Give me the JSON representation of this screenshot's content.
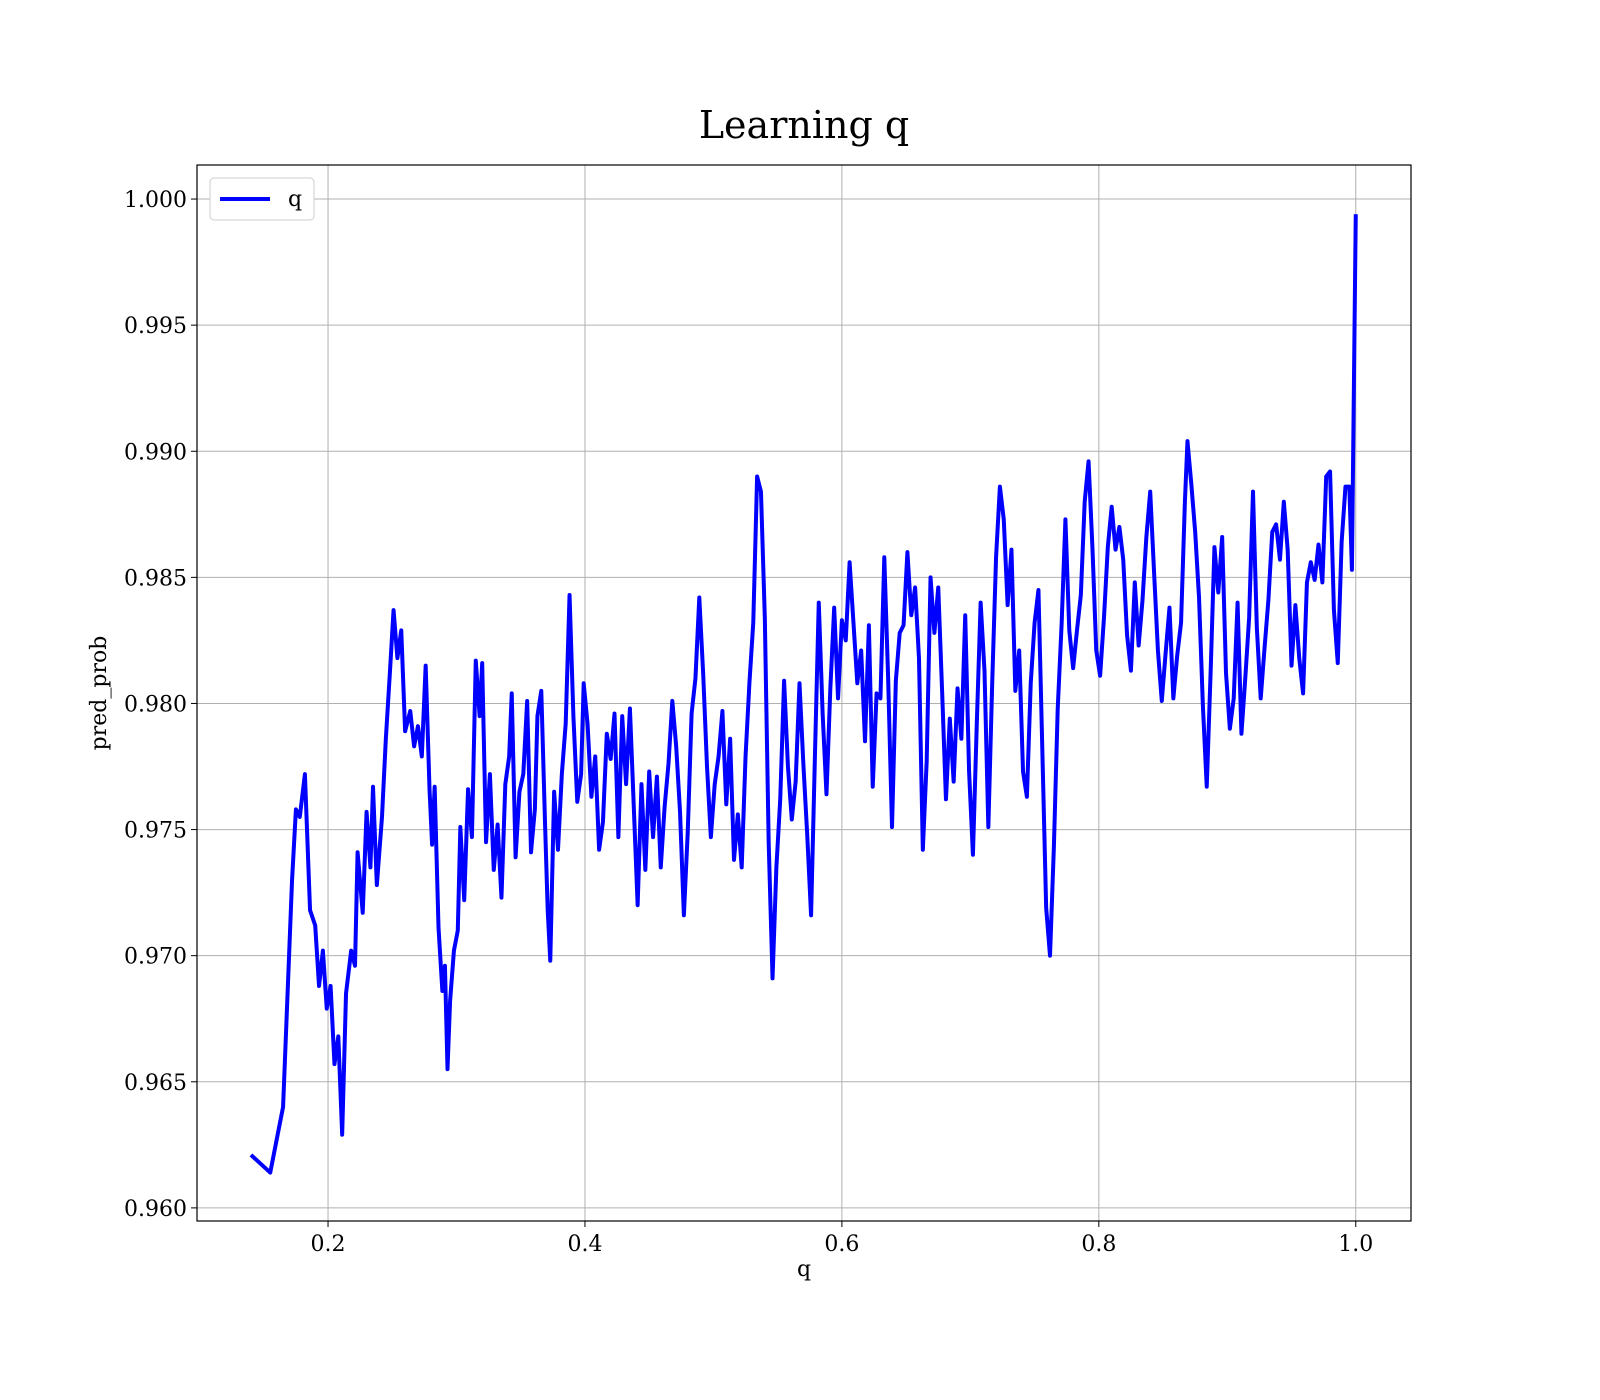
{
  "chart_data": {
    "type": "line",
    "title": "Learning q",
    "x_label": "q",
    "y_label": "pred_prob",
    "x": [
      0.14,
      0.155,
      0.16,
      0.165,
      0.172,
      0.175,
      0.178,
      0.182,
      0.186,
      0.19,
      0.193,
      0.196,
      0.199,
      0.202,
      0.205,
      0.208,
      0.211,
      0.214,
      0.218,
      0.221,
      0.223,
      0.227,
      0.23,
      0.233,
      0.235,
      0.238,
      0.242,
      0.245,
      0.248,
      0.251,
      0.254,
      0.257,
      0.26,
      0.264,
      0.267,
      0.27,
      0.273,
      0.276,
      0.279,
      0.281,
      0.283,
      0.286,
      0.289,
      0.291,
      0.293,
      0.295,
      0.298,
      0.301,
      0.303,
      0.306,
      0.309,
      0.312,
      0.315,
      0.318,
      0.32,
      0.323,
      0.326,
      0.329,
      0.332,
      0.335,
      0.338,
      0.341,
      0.343,
      0.346,
      0.349,
      0.352,
      0.355,
      0.358,
      0.361,
      0.363,
      0.366,
      0.369,
      0.371,
      0.373,
      0.376,
      0.379,
      0.382,
      0.385,
      0.388,
      0.391,
      0.394,
      0.397,
      0.399,
      0.402,
      0.405,
      0.408,
      0.411,
      0.414,
      0.417,
      0.42,
      0.423,
      0.426,
      0.429,
      0.432,
      0.435,
      0.438,
      0.441,
      0.444,
      0.447,
      0.45,
      0.453,
      0.456,
      0.459,
      0.462,
      0.465,
      0.468,
      0.471,
      0.474,
      0.477,
      0.48,
      0.483,
      0.486,
      0.489,
      0.492,
      0.495,
      0.498,
      0.501,
      0.504,
      0.507,
      0.51,
      0.513,
      0.516,
      0.519,
      0.522,
      0.525,
      0.528,
      0.531,
      0.534,
      0.537,
      0.54,
      0.543,
      0.546,
      0.549,
      0.552,
      0.555,
      0.558,
      0.561,
      0.564,
      0.567,
      0.57,
      0.573,
      0.576,
      0.579,
      0.582,
      0.585,
      0.588,
      0.591,
      0.594,
      0.597,
      0.6,
      0.603,
      0.606,
      0.609,
      0.612,
      0.615,
      0.618,
      0.621,
      0.624,
      0.627,
      0.63,
      0.633,
      0.636,
      0.639,
      0.642,
      0.645,
      0.648,
      0.651,
      0.654,
      0.657,
      0.66,
      0.663,
      0.666,
      0.669,
      0.672,
      0.675,
      0.678,
      0.681,
      0.684,
      0.687,
      0.69,
      0.693,
      0.696,
      0.699,
      0.702,
      0.705,
      0.708,
      0.711,
      0.714,
      0.717,
      0.72,
      0.723,
      0.726,
      0.729,
      0.732,
      0.735,
      0.738,
      0.741,
      0.744,
      0.747,
      0.75,
      0.753,
      0.756,
      0.759,
      0.762,
      0.765,
      0.768,
      0.771,
      0.774,
      0.777,
      0.78,
      0.783,
      0.786,
      0.789,
      0.792,
      0.795,
      0.798,
      0.801,
      0.804,
      0.807,
      0.81,
      0.813,
      0.816,
      0.819,
      0.822,
      0.825,
      0.828,
      0.831,
      0.834,
      0.837,
      0.84,
      0.843,
      0.846,
      0.849,
      0.852,
      0.855,
      0.858,
      0.861,
      0.864,
      0.867,
      0.869,
      0.872,
      0.875,
      0.878,
      0.881,
      0.884,
      0.887,
      0.89,
      0.893,
      0.896,
      0.899,
      0.902,
      0.905,
      0.908,
      0.911,
      0.914,
      0.917,
      0.92,
      0.923,
      0.926,
      0.929,
      0.932,
      0.935,
      0.938,
      0.941,
      0.944,
      0.947,
      0.95,
      0.953,
      0.956,
      0.959,
      0.962,
      0.965,
      0.968,
      0.971,
      0.974,
      0.977,
      0.98,
      0.983,
      0.986,
      0.989,
      0.992,
      0.995,
      0.997,
      1.0
    ],
    "series": [
      {
        "name": "q",
        "color": "#0000ff",
        "values": [
          0.9621,
          0.9614,
          0.9627,
          0.964,
          0.973,
          0.9758,
          0.9755,
          0.9772,
          0.9718,
          0.9712,
          0.9688,
          0.9702,
          0.9679,
          0.9688,
          0.9657,
          0.9668,
          0.9629,
          0.9685,
          0.9702,
          0.9696,
          0.9741,
          0.9717,
          0.9757,
          0.9735,
          0.9767,
          0.9728,
          0.9755,
          0.9786,
          0.9811,
          0.9837,
          0.9818,
          0.9829,
          0.9789,
          0.9797,
          0.9783,
          0.9791,
          0.9779,
          0.9815,
          0.9766,
          0.9744,
          0.9767,
          0.9711,
          0.9686,
          0.9696,
          0.9655,
          0.9682,
          0.9702,
          0.971,
          0.9751,
          0.9722,
          0.9766,
          0.9747,
          0.9817,
          0.9795,
          0.9816,
          0.9745,
          0.9772,
          0.9734,
          0.9752,
          0.9723,
          0.9768,
          0.9779,
          0.9804,
          0.9739,
          0.9765,
          0.9772,
          0.9801,
          0.9741,
          0.9758,
          0.9795,
          0.9805,
          0.9751,
          0.9718,
          0.9698,
          0.9765,
          0.9742,
          0.9772,
          0.9792,
          0.9843,
          0.9795,
          0.9761,
          0.9772,
          0.9808,
          0.9792,
          0.9763,
          0.9779,
          0.9742,
          0.9753,
          0.9788,
          0.9778,
          0.9796,
          0.9747,
          0.9795,
          0.9768,
          0.9798,
          0.9759,
          0.972,
          0.9768,
          0.9734,
          0.9773,
          0.9747,
          0.9771,
          0.9735,
          0.9759,
          0.9776,
          0.9801,
          0.9783,
          0.9757,
          0.9716,
          0.9749,
          0.9796,
          0.981,
          0.9842,
          0.9812,
          0.9775,
          0.9747,
          0.9768,
          0.9779,
          0.9797,
          0.976,
          0.9786,
          0.9738,
          0.9756,
          0.9735,
          0.9779,
          0.9808,
          0.9832,
          0.989,
          0.9884,
          0.9834,
          0.9745,
          0.9691,
          0.9735,
          0.9762,
          0.9809,
          0.9775,
          0.9754,
          0.9769,
          0.9808,
          0.9776,
          0.9748,
          0.9716,
          0.9779,
          0.984,
          0.9796,
          0.9764,
          0.9806,
          0.9838,
          0.9802,
          0.9833,
          0.9825,
          0.9856,
          0.9832,
          0.9808,
          0.9821,
          0.9785,
          0.9831,
          0.9767,
          0.9804,
          0.9802,
          0.9858,
          0.981,
          0.9751,
          0.9809,
          0.9828,
          0.9831,
          0.986,
          0.9835,
          0.9846,
          0.9818,
          0.9742,
          0.9777,
          0.985,
          0.9828,
          0.9846,
          0.9805,
          0.9762,
          0.9794,
          0.9769,
          0.9806,
          0.9786,
          0.9835,
          0.9773,
          0.974,
          0.9792,
          0.984,
          0.9813,
          0.9751,
          0.9808,
          0.9858,
          0.9886,
          0.9873,
          0.9839,
          0.9861,
          0.9805,
          0.9821,
          0.9773,
          0.9763,
          0.9808,
          0.9832,
          0.9845,
          0.9782,
          0.9719,
          0.97,
          0.9743,
          0.9798,
          0.9831,
          0.9873,
          0.9829,
          0.9814,
          0.9829,
          0.9843,
          0.988,
          0.9896,
          0.9862,
          0.9821,
          0.9811,
          0.9834,
          0.9862,
          0.9878,
          0.9861,
          0.987,
          0.9857,
          0.9827,
          0.9813,
          0.9848,
          0.9823,
          0.9841,
          0.9866,
          0.9884,
          0.9852,
          0.9821,
          0.9801,
          0.982,
          0.9838,
          0.9802,
          0.9819,
          0.9832,
          0.988,
          0.9904,
          0.9887,
          0.9868,
          0.9842,
          0.9799,
          0.9767,
          0.9812,
          0.9862,
          0.9844,
          0.9866,
          0.9812,
          0.979,
          0.9802,
          0.984,
          0.9788,
          0.981,
          0.9834,
          0.9884,
          0.983,
          0.9802,
          0.9822,
          0.9841,
          0.9868,
          0.9871,
          0.9857,
          0.988,
          0.9861,
          0.9815,
          0.9839,
          0.9818,
          0.9804,
          0.9848,
          0.9856,
          0.9849,
          0.9863,
          0.9848,
          0.989,
          0.9892,
          0.9837,
          0.9816,
          0.9864,
          0.9886,
          0.9886,
          0.9853,
          0.9994
        ]
      }
    ],
    "xlim": [
      0.098,
      1.043
    ],
    "ylim": [
      0.95948,
      1.00135
    ],
    "xticks": [
      0.2,
      0.4,
      0.6,
      0.8,
      {
        "value": 1.0,
        "label": "1.0"
      }
    ],
    "yticks": [
      {
        "value": 0.96,
        "label": "0.960"
      },
      {
        "value": 0.965,
        "label": "0.965"
      },
      {
        "value": 0.97,
        "label": "0.970"
      },
      {
        "value": 0.975,
        "label": "0.975"
      },
      {
        "value": 0.98,
        "label": "0.980"
      },
      {
        "value": 0.985,
        "label": "0.985"
      },
      {
        "value": 0.99,
        "label": "0.990"
      },
      {
        "value": 0.995,
        "label": "0.995"
      },
      {
        "value": 1.0,
        "label": "1.000"
      }
    ],
    "grid": true,
    "legend": "upper left"
  }
}
